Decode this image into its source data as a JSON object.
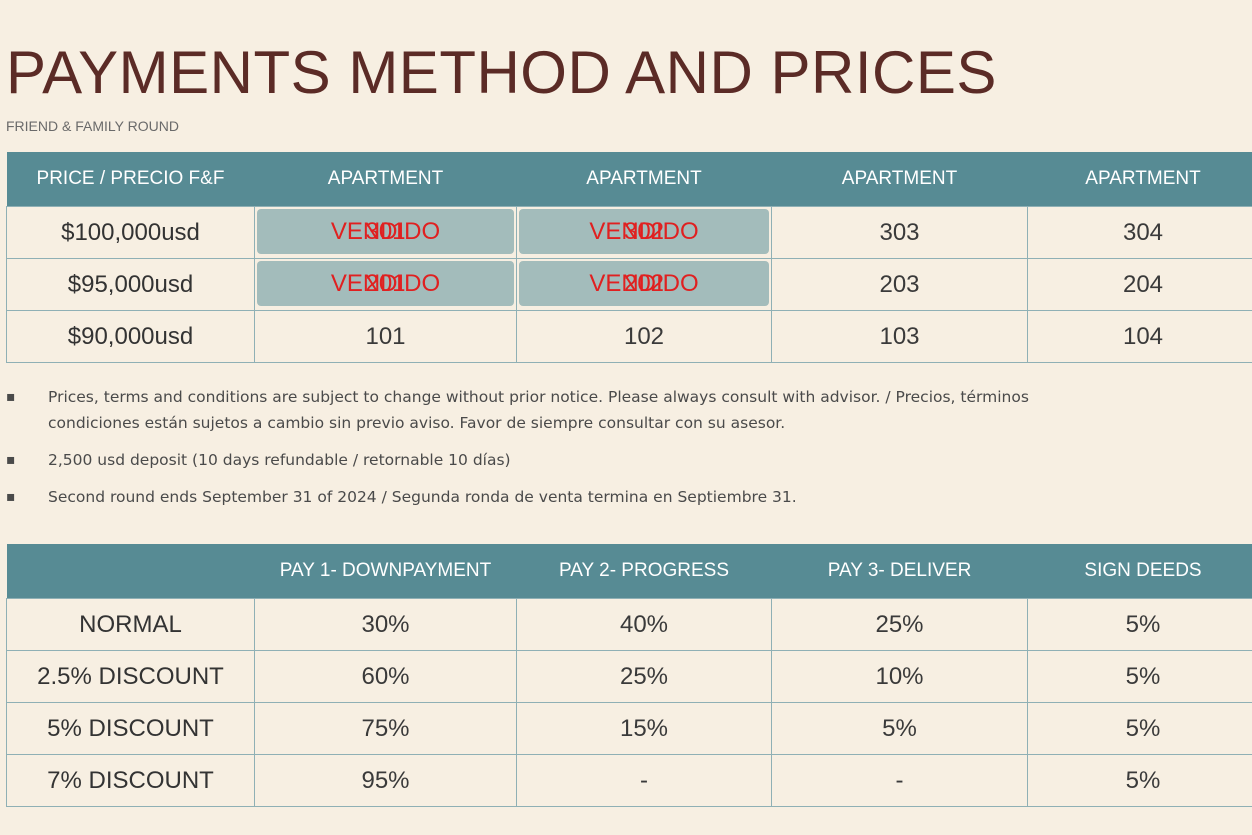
{
  "header": {
    "title": "PAYMENTS METHOD AND PRICES",
    "subtitle": "FRIEND & FAMILY ROUND"
  },
  "price_table": {
    "headers": [
      "PRICE / PRECIO F&F",
      "APARTMENT",
      "APARTMENT",
      "APARTMENT",
      "APARTMENT"
    ],
    "sold_label": "VENDIDO",
    "rows": [
      {
        "price": "$100,000usd",
        "units": [
          {
            "num": "301",
            "sold": true
          },
          {
            "num": "302",
            "sold": true
          },
          {
            "num": "303",
            "sold": false
          },
          {
            "num": "304",
            "sold": false
          }
        ]
      },
      {
        "price": "$95,000usd",
        "units": [
          {
            "num": "201",
            "sold": true
          },
          {
            "num": "202",
            "sold": true
          },
          {
            "num": "203",
            "sold": false
          },
          {
            "num": "204",
            "sold": false
          }
        ]
      },
      {
        "price": "$90,000usd",
        "units": [
          {
            "num": "101",
            "sold": false
          },
          {
            "num": "102",
            "sold": false
          },
          {
            "num": "103",
            "sold": false
          },
          {
            "num": "104",
            "sold": false
          }
        ]
      }
    ]
  },
  "notes": [
    "Prices, terms and conditions are subject to change without prior notice. Please always consult with advisor. / Precios, términos",
    "condiciones están sujetos a cambio sin previo aviso. Favor de siempre consultar con su asesor.",
    "2,500 usd deposit (10 days refundable / retornable 10 días)",
    "Second round ends September 31 of 2024 /  Segunda ronda de venta termina en Septiembre 31."
  ],
  "pay_table": {
    "headers": [
      "",
      "PAY 1- DOWNPAYMENT",
      "PAY 2-  PROGRESS",
      "PAY 3- DELIVER",
      "SIGN DEEDS"
    ],
    "rows": [
      {
        "label": "NORMAL",
        "values": [
          "30%",
          "40%",
          "25%",
          "5%"
        ]
      },
      {
        "label": "2.5% DISCOUNT",
        "values": [
          "60%",
          "25%",
          "10%",
          "5%"
        ]
      },
      {
        "label": "5% DISCOUNT",
        "values": [
          "75%",
          "15%",
          "5%",
          "5%"
        ]
      },
      {
        "label": "7% DISCOUNT",
        "values": [
          "95%",
          "-",
          "-",
          "5%"
        ]
      }
    ]
  }
}
